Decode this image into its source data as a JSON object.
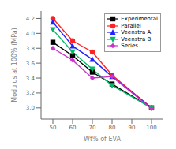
{
  "chart_data": {
    "type": "line",
    "x": [
      50,
      60,
      70,
      80,
      100
    ],
    "series": [
      {
        "name": "Experimental",
        "color": "#000000",
        "marker": "square",
        "values": [
          3.88,
          3.7,
          3.48,
          3.32,
          3.0
        ]
      },
      {
        "name": "Parallel",
        "color": "#ff2222",
        "marker": "circle",
        "values": [
          4.2,
          3.9,
          3.75,
          3.44,
          3.0
        ]
      },
      {
        "name": "Veenstra A",
        "color": "#2222ff",
        "marker": "triangle-up",
        "values": [
          4.15,
          3.83,
          3.65,
          3.42,
          3.0
        ]
      },
      {
        "name": "Veenstra B",
        "color": "#00bb66",
        "marker": "triangle-down",
        "values": [
          4.05,
          3.75,
          3.52,
          3.3,
          3.0
        ]
      },
      {
        "name": "Series",
        "color": "#cc33cc",
        "marker": "diamond",
        "values": [
          3.8,
          3.64,
          3.4,
          3.42,
          2.99
        ]
      }
    ],
    "xlabel": "Wt% of EVA",
    "ylabel": "Modulus at 100% (MPa)",
    "xlim": [
      44,
      106
    ],
    "ylim": [
      2.85,
      4.3
    ],
    "xticks": [
      50,
      60,
      70,
      80,
      90,
      100
    ],
    "yticks": [
      {
        "value": 3.0,
        "label": "3.0"
      },
      3.2,
      3.4,
      3.6,
      3.8,
      {
        "value": 4.0,
        "label": "4.0"
      },
      4.2
    ],
    "legend": "upper right",
    "grid": false
  }
}
